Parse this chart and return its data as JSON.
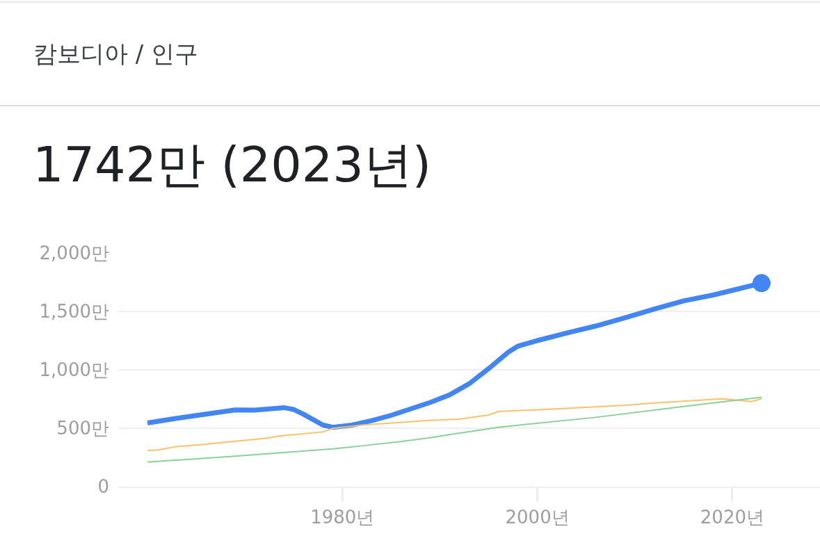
{
  "chart_data": {
    "type": "line",
    "title": "캄보디아 / 인구",
    "subtitle": "1742만 (2023년)",
    "series": [
      {
        "color": "#4285f4",
        "x": [
          1960,
          1963,
          1966,
          1969,
          1971,
          1974,
          1975,
          1976,
          1978,
          1979,
          1981,
          1983,
          1985,
          1987,
          1989,
          1991,
          1993,
          1995,
          1997,
          1998,
          2000,
          2003,
          2006,
          2009,
          2012,
          2015,
          2018,
          2020,
          2023
        ],
        "values": [
          545,
          585,
          620,
          656,
          655,
          676,
          660,
          620,
          527,
          508,
          527,
          565,
          610,
          665,
          720,
          785,
          880,
          1010,
          1150,
          1202,
          1250,
          1315,
          1375,
          1445,
          1520,
          1590,
          1640,
          1680,
          1742
        ]
      },
      {
        "color": "#f6c26b",
        "x": [
          1960,
          1961,
          1963,
          1966,
          1969,
          1972,
          1974,
          1978,
          1979,
          1982,
          1989,
          1992,
          1995,
          1996,
          2003,
          2009,
          2012,
          2019,
          2022,
          2023
        ],
        "values": [
          310,
          312,
          343,
          363,
          389,
          412,
          438,
          468,
          498,
          527,
          567,
          577,
          613,
          643,
          670,
          696,
          716,
          752,
          728,
          752
        ]
      },
      {
        "color": "#8ccf9b",
        "x": [
          1960,
          1969,
          1979,
          1982,
          1986,
          1989,
          1991,
          1996,
          2006,
          2015,
          2023
        ],
        "values": [
          210,
          260,
          323,
          349,
          385,
          418,
          445,
          508,
          593,
          686,
          765
        ]
      }
    ],
    "xlim": [
      1957,
      2029
    ],
    "xticks": [
      {
        "value": 1980,
        "label": "1980년"
      },
      {
        "value": 2000,
        "label": "2000년"
      },
      {
        "value": 2020,
        "label": "2020년"
      }
    ],
    "ylim": [
      0,
      2000
    ],
    "yticks": [
      0,
      {
        "value": 500,
        "label": "500만"
      },
      {
        "value": 1000,
        "label": "1,000만"
      },
      {
        "value": 1500,
        "label": "1,500만"
      },
      {
        "value": 2000,
        "label": "2,000만"
      }
    ],
    "grid": "y"
  }
}
